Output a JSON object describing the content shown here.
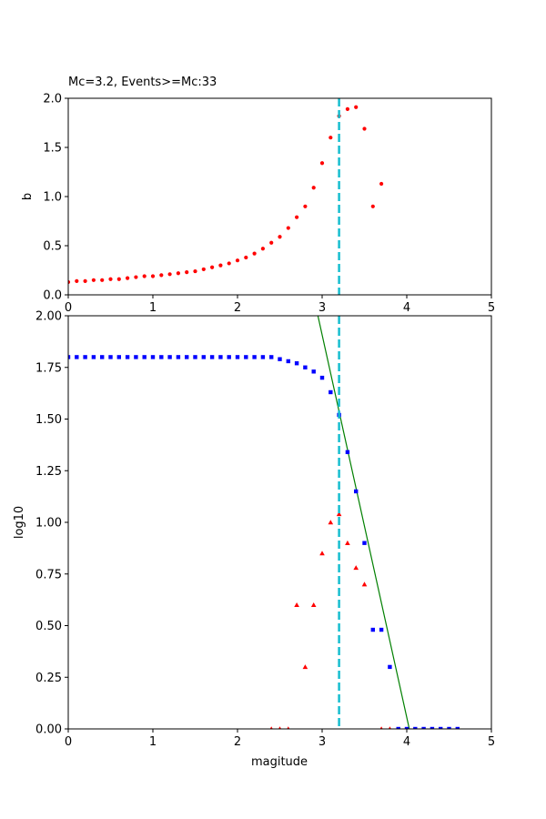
{
  "chart_data": [
    {
      "type": "scatter",
      "title": "Mc=3.2, Events>=Mc:33",
      "xlabel": "",
      "ylabel": "b",
      "xlim": [
        0,
        5
      ],
      "ylim": [
        0,
        2.0
      ],
      "xticks": [
        "0",
        "1",
        "2",
        "3",
        "4",
        "5"
      ],
      "yticks": [
        "0.0",
        "0.5",
        "1.0",
        "1.5",
        "2.0"
      ],
      "grid": false,
      "series": [
        {
          "marker": "dot",
          "color": "#ff0000",
          "x": [
            0.0,
            0.1,
            0.2,
            0.3,
            0.4,
            0.5,
            0.6,
            0.7,
            0.8,
            0.9,
            1.0,
            1.1,
            1.2,
            1.3,
            1.4,
            1.5,
            1.6,
            1.7,
            1.8,
            1.9,
            2.0,
            2.1,
            2.2,
            2.3,
            2.4,
            2.5,
            2.6,
            2.7,
            2.8,
            2.9,
            3.0,
            3.1,
            3.2,
            3.3,
            3.4,
            3.5,
            3.6,
            3.7
          ],
          "y": [
            0.13,
            0.14,
            0.14,
            0.15,
            0.15,
            0.16,
            0.16,
            0.17,
            0.18,
            0.19,
            0.19,
            0.2,
            0.21,
            0.22,
            0.23,
            0.24,
            0.26,
            0.28,
            0.3,
            0.32,
            0.35,
            0.38,
            0.42,
            0.47,
            0.53,
            0.59,
            0.68,
            0.79,
            0.9,
            1.09,
            1.34,
            1.6,
            1.82,
            1.89,
            1.91,
            1.69,
            0.9,
            1.13
          ]
        }
      ],
      "vlines": [
        {
          "x": 3.2,
          "color": "#17becf",
          "style": "dashed"
        }
      ]
    },
    {
      "type": "scatter",
      "title": "",
      "xlabel": "magitude",
      "ylabel": "log10",
      "xlim": [
        0,
        5
      ],
      "ylim": [
        0,
        2.0
      ],
      "xticks": [
        "0",
        "1",
        "2",
        "3",
        "4",
        "5"
      ],
      "yticks": [
        "0.00",
        "0.25",
        "0.50",
        "0.75",
        "1.00",
        "1.25",
        "1.50",
        "1.75",
        "2.00"
      ],
      "grid": false,
      "series": [
        {
          "marker": "square",
          "color": "#0000ff",
          "x": [
            0.0,
            0.1,
            0.2,
            0.3,
            0.4,
            0.5,
            0.6,
            0.7,
            0.8,
            0.9,
            1.0,
            1.1,
            1.2,
            1.3,
            1.4,
            1.5,
            1.6,
            1.7,
            1.8,
            1.9,
            2.0,
            2.1,
            2.2,
            2.3,
            2.4,
            2.5,
            2.6,
            2.7,
            2.8,
            2.9,
            3.0,
            3.1,
            3.2,
            3.3,
            3.4,
            3.5,
            3.6,
            3.7,
            3.8,
            3.9,
            4.0,
            4.1,
            4.2,
            4.3,
            4.4,
            4.5,
            4.6
          ],
          "y": [
            1.8,
            1.8,
            1.8,
            1.8,
            1.8,
            1.8,
            1.8,
            1.8,
            1.8,
            1.8,
            1.8,
            1.8,
            1.8,
            1.8,
            1.8,
            1.8,
            1.8,
            1.8,
            1.8,
            1.8,
            1.8,
            1.8,
            1.8,
            1.8,
            1.8,
            1.79,
            1.78,
            1.77,
            1.75,
            1.73,
            1.7,
            1.63,
            1.52,
            1.34,
            1.15,
            0.9,
            0.48,
            0.48,
            0.3,
            0.0,
            0.0,
            0.0,
            0.0,
            0.0,
            0.0,
            0.0,
            0.0
          ]
        },
        {
          "marker": "triangle",
          "color": "#ff0000",
          "x": [
            2.4,
            2.5,
            2.6,
            2.7,
            2.8,
            2.9,
            3.0,
            3.1,
            3.2,
            3.3,
            3.4,
            3.5,
            3.7,
            3.8
          ],
          "y": [
            0.0,
            0.0,
            0.0,
            0.6,
            0.3,
            0.6,
            0.85,
            1.0,
            1.04,
            0.9,
            0.78,
            0.7,
            0.0,
            0.0
          ]
        }
      ],
      "fit_line": {
        "x": [
          2.95,
          4.03
        ],
        "y": [
          2.0,
          0.0
        ],
        "color": "#008000"
      },
      "vlines": [
        {
          "x": 3.2,
          "color": "#17becf",
          "style": "dashed"
        }
      ]
    }
  ]
}
